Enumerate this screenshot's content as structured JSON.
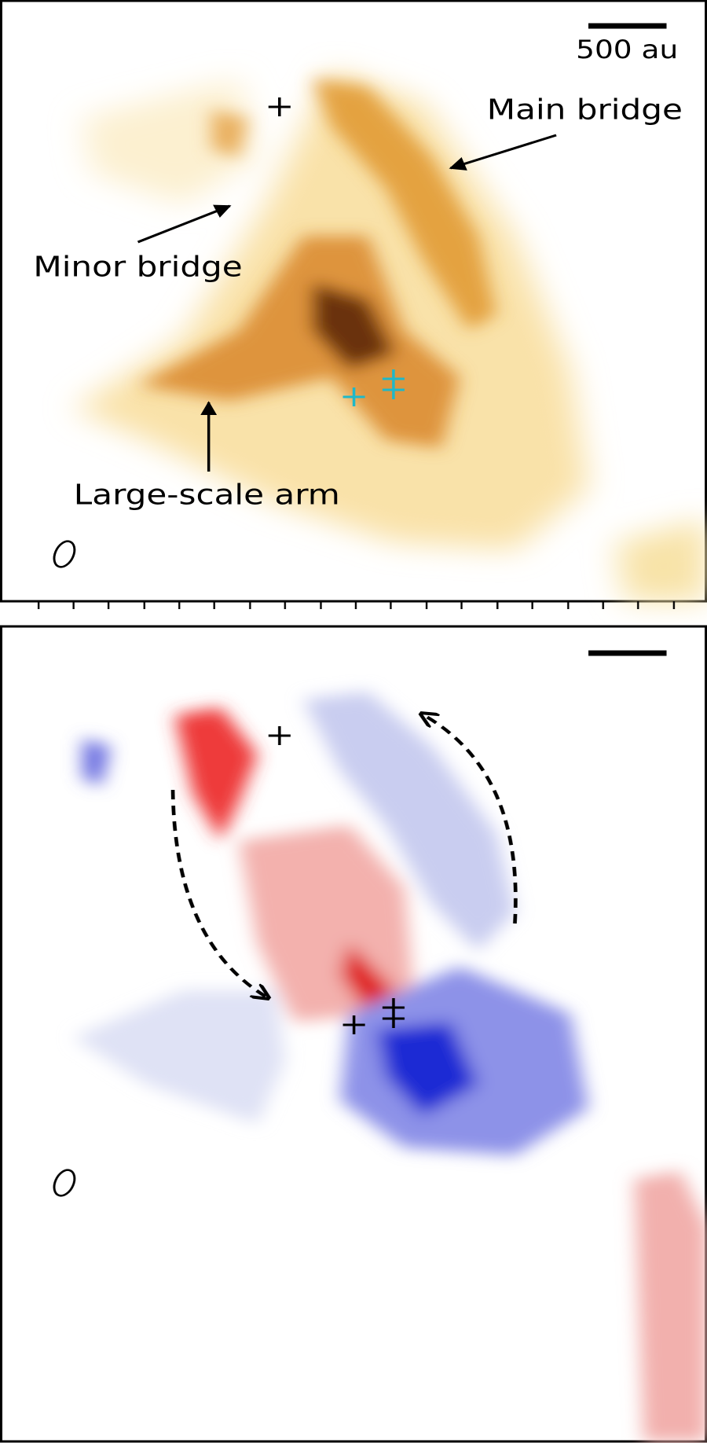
{
  "top_panel": {
    "scale_bar_label": "500 au",
    "annotations": [
      "Main bridge",
      "Minor bridge",
      "Large-scale arm"
    ]
  }
}
